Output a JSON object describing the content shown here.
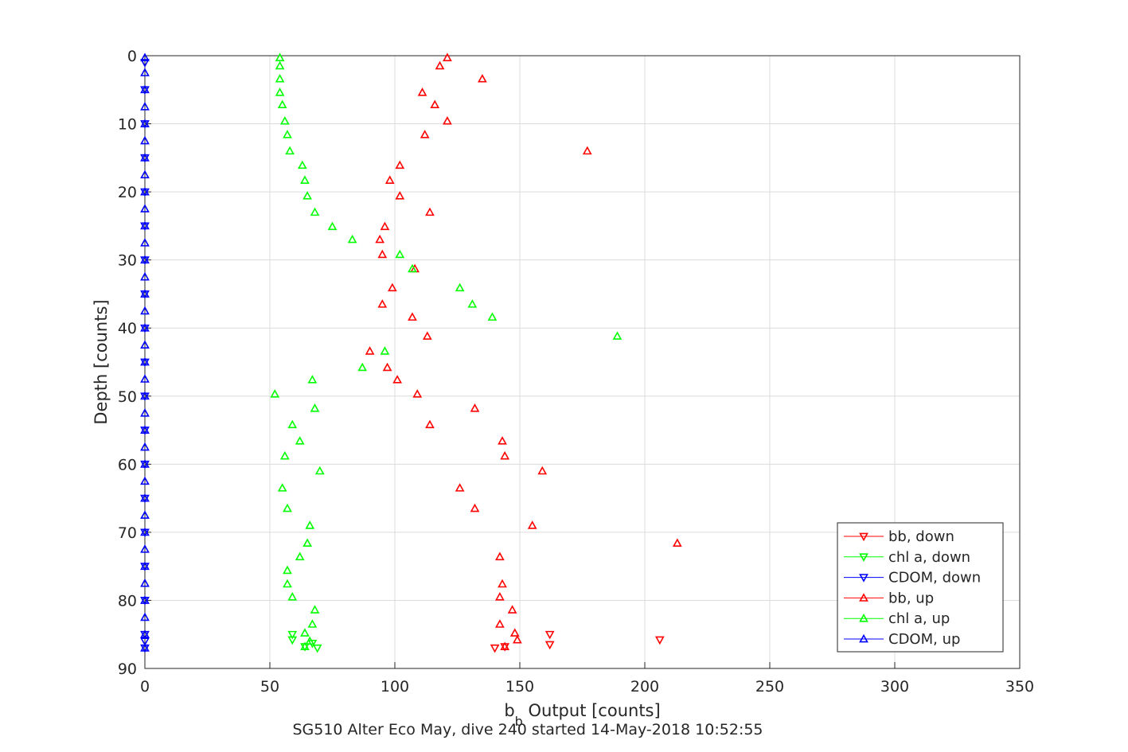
{
  "chart_data": {
    "type": "scatter",
    "title": "",
    "xlabel_base": "b",
    "xlabel_sub": "b",
    "xlabel_rest": " Output [counts]",
    "ylabel": "Depth [counts]",
    "caption": "SG510 Alter Eco May, dive 240 started 14-May-2018 10:52:55",
    "xlim": [
      0,
      350
    ],
    "ylim": [
      0,
      90
    ],
    "y_reversed": true,
    "grid": true,
    "legend_position": "bottom-right",
    "xticks": [
      "0",
      "50",
      "100",
      "150",
      "200",
      "250",
      "300",
      "350"
    ],
    "yticks": [
      "0",
      "10",
      "20",
      "30",
      "40",
      "50",
      "60",
      "70",
      "80",
      "90"
    ],
    "series": [
      {
        "name": "bb, down",
        "color": "#ff0000",
        "marker": "triangle-down",
        "points": [
          [
            140,
            87.0
          ],
          [
            144,
            86.8
          ],
          [
            162,
            86.5
          ],
          [
            206,
            85.8
          ],
          [
            162,
            85.0
          ]
        ]
      },
      {
        "name": "chl a, down",
        "color": "#00ff00",
        "marker": "triangle-down",
        "points": [
          [
            69,
            87.0
          ],
          [
            64,
            86.8
          ],
          [
            67,
            86.3
          ],
          [
            59,
            85.8
          ],
          [
            59,
            85.0
          ]
        ]
      },
      {
        "name": "CDOM, down",
        "color": "#0000ff",
        "marker": "triangle-down",
        "points": [
          [
            0,
            87.0
          ],
          [
            0,
            86.0
          ],
          [
            0,
            85.0
          ],
          [
            0,
            80.0
          ],
          [
            0,
            75.0
          ],
          [
            0,
            70.0
          ],
          [
            0,
            65.0
          ],
          [
            0,
            60.0
          ],
          [
            0,
            55.0
          ],
          [
            0,
            50.0
          ],
          [
            0,
            45.0
          ],
          [
            0,
            40.0
          ],
          [
            0,
            35.0
          ],
          [
            0,
            30.0
          ],
          [
            0,
            25.0
          ],
          [
            0,
            20.0
          ],
          [
            0,
            15.0
          ],
          [
            0,
            10.0
          ],
          [
            0,
            5.0
          ],
          [
            0,
            1.0
          ]
        ]
      },
      {
        "name": "bb, up",
        "color": "#ff0000",
        "marker": "triangle-up",
        "points": [
          [
            121,
            0.3
          ],
          [
            118,
            1.5
          ],
          [
            135,
            3.4
          ],
          [
            111,
            5.4
          ],
          [
            116,
            7.2
          ],
          [
            121,
            9.6
          ],
          [
            112,
            11.6
          ],
          [
            177,
            14.0
          ],
          [
            102,
            16.1
          ],
          [
            98,
            18.3
          ],
          [
            102,
            20.6
          ],
          [
            114,
            23.0
          ],
          [
            96,
            25.1
          ],
          [
            94,
            27.0
          ],
          [
            95,
            29.2
          ],
          [
            108,
            31.3
          ],
          [
            99,
            34.1
          ],
          [
            95,
            36.5
          ],
          [
            107,
            38.4
          ],
          [
            113,
            41.2
          ],
          [
            90,
            43.4
          ],
          [
            97,
            45.8
          ],
          [
            101,
            47.6
          ],
          [
            109,
            49.7
          ],
          [
            132,
            51.8
          ],
          [
            114,
            54.2
          ],
          [
            143,
            56.6
          ],
          [
            144,
            58.8
          ],
          [
            159,
            61.0
          ],
          [
            126,
            63.5
          ],
          [
            132,
            66.5
          ],
          [
            155,
            69.0
          ],
          [
            213,
            71.6
          ],
          [
            142,
            73.6
          ],
          [
            143,
            77.6
          ],
          [
            142,
            79.5
          ],
          [
            147,
            81.4
          ],
          [
            142,
            83.5
          ],
          [
            148,
            84.8
          ],
          [
            149,
            85.8
          ],
          [
            144,
            86.8
          ]
        ]
      },
      {
        "name": "chl a, up",
        "color": "#00ff00",
        "marker": "triangle-up",
        "points": [
          [
            54,
            0.3
          ],
          [
            54,
            1.5
          ],
          [
            54,
            3.4
          ],
          [
            54,
            5.4
          ],
          [
            55,
            7.2
          ],
          [
            56,
            9.6
          ],
          [
            57,
            11.6
          ],
          [
            58,
            14.0
          ],
          [
            63,
            16.1
          ],
          [
            64,
            18.3
          ],
          [
            65,
            20.6
          ],
          [
            68,
            23.0
          ],
          [
            75,
            25.1
          ],
          [
            83,
            27.0
          ],
          [
            102,
            29.2
          ],
          [
            107,
            31.3
          ],
          [
            126,
            34.1
          ],
          [
            131,
            36.5
          ],
          [
            139,
            38.4
          ],
          [
            189,
            41.2
          ],
          [
            96,
            43.4
          ],
          [
            87,
            45.8
          ],
          [
            67,
            47.6
          ],
          [
            52,
            49.7
          ],
          [
            68,
            51.8
          ],
          [
            59,
            54.2
          ],
          [
            62,
            56.6
          ],
          [
            56,
            58.8
          ],
          [
            70,
            61.0
          ],
          [
            55,
            63.5
          ],
          [
            57,
            66.5
          ],
          [
            66,
            69.0
          ],
          [
            65,
            71.6
          ],
          [
            62,
            73.6
          ],
          [
            57,
            75.6
          ],
          [
            57,
            77.6
          ],
          [
            59,
            79.5
          ],
          [
            68,
            81.4
          ],
          [
            67,
            83.5
          ],
          [
            64,
            84.8
          ],
          [
            66,
            86.0
          ],
          [
            64,
            86.8
          ]
        ]
      },
      {
        "name": "CDOM, up",
        "color": "#0000ff",
        "marker": "triangle-up",
        "points": [
          [
            0,
            0.3
          ],
          [
            0,
            2.5
          ],
          [
            0,
            5.0
          ],
          [
            0,
            7.5
          ],
          [
            0,
            10.0
          ],
          [
            0,
            12.5
          ],
          [
            0,
            15.0
          ],
          [
            0,
            17.5
          ],
          [
            0,
            20.0
          ],
          [
            0,
            22.5
          ],
          [
            0,
            25.0
          ],
          [
            0,
            27.5
          ],
          [
            0,
            30.0
          ],
          [
            0,
            32.5
          ],
          [
            0,
            35.0
          ],
          [
            0,
            37.5
          ],
          [
            0,
            40.0
          ],
          [
            0,
            42.5
          ],
          [
            0,
            45.0
          ],
          [
            0,
            47.5
          ],
          [
            0,
            50.0
          ],
          [
            0,
            52.5
          ],
          [
            0,
            55.0
          ],
          [
            0,
            57.5
          ],
          [
            0,
            60.0
          ],
          [
            0,
            62.5
          ],
          [
            0,
            65.0
          ],
          [
            0,
            67.5
          ],
          [
            0,
            70.0
          ],
          [
            0,
            72.5
          ],
          [
            0,
            75.0
          ],
          [
            0,
            77.5
          ],
          [
            0,
            80.0
          ],
          [
            0,
            82.5
          ],
          [
            0,
            85.0
          ],
          [
            0,
            87.0
          ]
        ]
      }
    ]
  }
}
